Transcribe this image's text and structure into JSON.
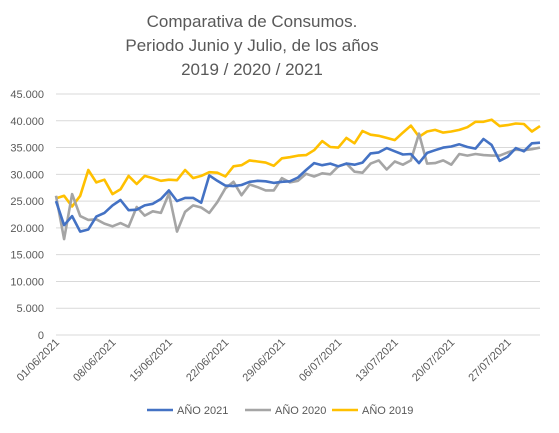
{
  "chart_data": {
    "type": "line",
    "title_lines": [
      "Comparativa de Consumos.",
      "Periodo Junio y Julio, de los años",
      "2019 / 2020 / 2021"
    ],
    "xlabel": "",
    "ylabel": "",
    "ylim": [
      0,
      45000
    ],
    "y_ticks": [
      "0",
      "5.000",
      "10.000",
      "15.000",
      "20.000",
      "25.000",
      "30.000",
      "35.000",
      "40.000",
      "45.000"
    ],
    "x_tick_labels": [
      "01/06/2021",
      "08/06/2021",
      "15/06/2021",
      "22/06/2021",
      "29/06/2021",
      "06/07/2021",
      "13/07/2021",
      "20/07/2021",
      "27/07/2021"
    ],
    "x_start": "01/06/2021",
    "grid": "horizontal",
    "legend_position": "bottom",
    "series": [
      {
        "name": "AÑO 2021",
        "color": "#4472c4",
        "values": [
          25000,
          20500,
          22200,
          19300,
          19700,
          22100,
          22800,
          24200,
          25200,
          23300,
          23400,
          24200,
          24500,
          25400,
          27000,
          25000,
          25600,
          25600,
          24700,
          29800,
          28800,
          27900,
          27800,
          28000,
          28600,
          28800,
          28700,
          28400,
          28600,
          28700,
          29400,
          30800,
          32100,
          31700,
          32000,
          31500,
          32000,
          31800,
          32200,
          33900,
          34100,
          34900,
          34300,
          33700,
          33800,
          32100,
          34000,
          34500,
          35000,
          35200,
          35600,
          35100,
          34800,
          36600,
          35500,
          32500,
          33300,
          34900,
          34300,
          35800,
          35900
        ]
      },
      {
        "name": "AÑO 2020",
        "color": "#a5a5a5",
        "values": [
          26000,
          17900,
          26300,
          22200,
          21500,
          21600,
          20800,
          20300,
          20900,
          20200,
          23900,
          22300,
          23100,
          22800,
          26400,
          19300,
          23000,
          24200,
          23800,
          22800,
          24800,
          27400,
          28600,
          26100,
          28100,
          27600,
          27000,
          27000,
          29300,
          28500,
          28800,
          30100,
          29600,
          30200,
          30000,
          31500,
          32000,
          30500,
          30300,
          32000,
          32600,
          30900,
          32400,
          31800,
          32600,
          37600,
          32000,
          32100,
          32600,
          31800,
          33800,
          33500,
          33800,
          33600,
          33500,
          33500,
          34100,
          34600,
          34500,
          34700,
          35000
        ]
      },
      {
        "name": "AÑO 2019",
        "color": "#ffc000",
        "values": [
          25500,
          26000,
          24000,
          26000,
          30800,
          28500,
          29000,
          26300,
          27200,
          29700,
          28200,
          29700,
          29300,
          28800,
          29000,
          28900,
          30800,
          29300,
          29700,
          30400,
          30300,
          29600,
          31500,
          31700,
          32600,
          32400,
          32200,
          31600,
          33000,
          33200,
          33500,
          33600,
          34500,
          36200,
          35100,
          35000,
          36800,
          35800,
          38100,
          37400,
          37200,
          36800,
          36400,
          37800,
          39100,
          37000,
          38000,
          38300,
          37800,
          38000,
          38300,
          38800,
          39800,
          39800,
          40200,
          39000,
          39200,
          39500,
          39400,
          38000,
          39000
        ]
      }
    ]
  }
}
